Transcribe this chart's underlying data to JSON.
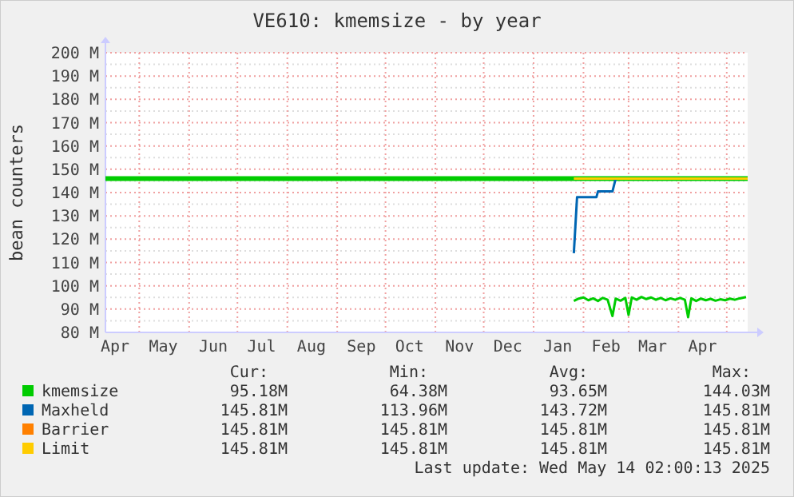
{
  "chart_data": {
    "type": "line",
    "title": "VE610: kmemsize - by year",
    "ylabel": "bean counters",
    "xlim": [
      "2024-04-10",
      "2025-05-14"
    ],
    "xticks": [
      {
        "value": "2024-04-16",
        "label": "Apr"
      },
      {
        "value": "2024-05-01",
        "label": null
      },
      {
        "value": "2024-05-16",
        "label": "May"
      },
      {
        "value": "2024-06-01",
        "label": null
      },
      {
        "value": "2024-06-16",
        "label": "Jun"
      },
      {
        "value": "2024-07-01",
        "label": null
      },
      {
        "value": "2024-07-16",
        "label": "Jul"
      },
      {
        "value": "2024-08-01",
        "label": null
      },
      {
        "value": "2024-08-16",
        "label": "Aug"
      },
      {
        "value": "2024-09-01",
        "label": null
      },
      {
        "value": "2024-09-16",
        "label": "Sep"
      },
      {
        "value": "2024-10-01",
        "label": null
      },
      {
        "value": "2024-10-16",
        "label": "Oct"
      },
      {
        "value": "2024-11-01",
        "label": null
      },
      {
        "value": "2024-11-16",
        "label": "Nov"
      },
      {
        "value": "2024-12-01",
        "label": null
      },
      {
        "value": "2024-12-16",
        "label": "Dec"
      },
      {
        "value": "2025-01-01",
        "label": null
      },
      {
        "value": "2025-01-16",
        "label": "Jan"
      },
      {
        "value": "2025-02-01",
        "label": null
      },
      {
        "value": "2025-02-15",
        "label": "Feb"
      },
      {
        "value": "2025-03-01",
        "label": null
      },
      {
        "value": "2025-03-16",
        "label": "Mar"
      },
      {
        "value": "2025-04-01",
        "label": null
      },
      {
        "value": "2025-04-16",
        "label": "Apr"
      },
      {
        "value": "2025-05-01",
        "label": null
      }
    ],
    "ylim": [
      80,
      200
    ],
    "yticks": [
      {
        "value": 80,
        "label": "80 M"
      },
      {
        "value": 85,
        "label": null
      },
      {
        "value": 90,
        "label": "90 M"
      },
      {
        "value": 95,
        "label": null
      },
      {
        "value": 100,
        "label": "100 M"
      },
      {
        "value": 105,
        "label": null
      },
      {
        "value": 110,
        "label": "110 M"
      },
      {
        "value": 115,
        "label": null
      },
      {
        "value": 120,
        "label": "120 M"
      },
      {
        "value": 125,
        "label": null
      },
      {
        "value": 130,
        "label": "130 M"
      },
      {
        "value": 135,
        "label": null
      },
      {
        "value": 140,
        "label": "140 M"
      },
      {
        "value": 145,
        "label": null
      },
      {
        "value": 150,
        "label": "150 M"
      },
      {
        "value": 155,
        "label": null
      },
      {
        "value": 160,
        "label": "160 M"
      },
      {
        "value": 165,
        "label": null
      },
      {
        "value": 170,
        "label": "170 M"
      },
      {
        "value": 175,
        "label": null
      },
      {
        "value": 180,
        "label": "180 M"
      },
      {
        "value": 185,
        "label": null
      },
      {
        "value": 190,
        "label": "190 M"
      },
      {
        "value": 195,
        "label": null
      },
      {
        "value": 200,
        "label": "200 M"
      }
    ],
    "grid": true,
    "legend": "bottom",
    "marker": "none",
    "line_style": "solid",
    "series": [
      {
        "color": "#00cc00",
        "x": [
          "2024-04-10",
          "2025-05-14"
        ],
        "values": [
          146,
          146
        ]
      },
      {
        "name": "kmemsize",
        "color": "#00cc00",
        "x": [
          "2025-01-26",
          "2025-01-29",
          "2025-02-01",
          "2025-02-04",
          "2025-02-07",
          "2025-02-10",
          "2025-02-13",
          "2025-02-16",
          "2025-02-19",
          "2025-02-21",
          "2025-02-24",
          "2025-02-27",
          "2025-03-01",
          "2025-03-03",
          "2025-03-06",
          "2025-03-09",
          "2025-03-12",
          "2025-03-15",
          "2025-03-18",
          "2025-03-21",
          "2025-03-24",
          "2025-03-27",
          "2025-03-30",
          "2025-04-02",
          "2025-04-05",
          "2025-04-07",
          "2025-04-09",
          "2025-04-12",
          "2025-04-15",
          "2025-04-18",
          "2025-04-21",
          "2025-04-24",
          "2025-04-27",
          "2025-04-30",
          "2025-05-03",
          "2025-05-06",
          "2025-05-09",
          "2025-05-13"
        ],
        "values": [
          93.5,
          94.5,
          95,
          93.8,
          94.6,
          93.5,
          94.8,
          94,
          87,
          94.5,
          93.6,
          94.8,
          87.5,
          95,
          94,
          95.2,
          94.3,
          95,
          94,
          94.8,
          93.8,
          94.6,
          94,
          94.8,
          94,
          86.5,
          94.6,
          93.5,
          94.5,
          93.8,
          94.4,
          93.6,
          94.2,
          93.8,
          94.5,
          94,
          94.6,
          95.2
        ]
      },
      {
        "name": "Maxheld",
        "color": "#0066b3",
        "x": [
          "2025-01-26",
          "2025-01-28",
          "2025-02-09",
          "2025-02-10",
          "2025-02-19",
          "2025-02-21"
        ],
        "values": [
          114,
          138,
          138,
          140.5,
          140.5,
          146
        ]
      },
      {
        "name": "Barrier",
        "color": "#ff8000"
      },
      {
        "name": "Limit",
        "color": "#ffcc00",
        "x": [
          "2025-01-26",
          "2025-05-14"
        ],
        "values": [
          146,
          146
        ]
      }
    ],
    "annotations": [
      "Cur:",
      "Min:",
      "Avg:",
      "Max:",
      "95.18M",
      "64.38M",
      "93.65M",
      "144.03M",
      "145.81M",
      "113.96M",
      "143.72M",
      "145.81M",
      "145.81M",
      "145.81M",
      "145.81M",
      "145.81M",
      "145.81M",
      "145.81M",
      "145.81M",
      "145.81M",
      "Last update: Wed May 14 02:00:13 2025"
    ]
  }
}
